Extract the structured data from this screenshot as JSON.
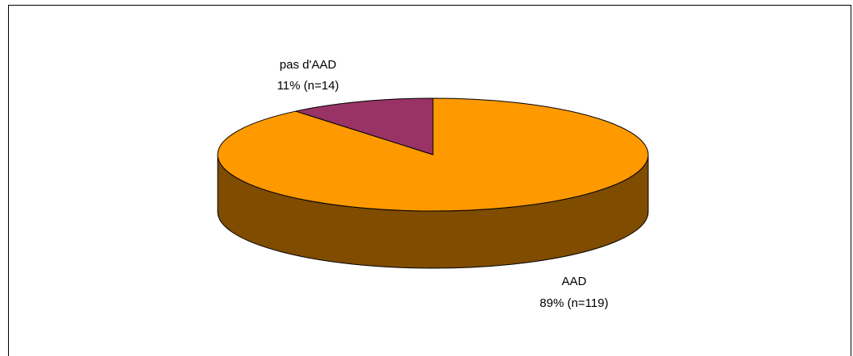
{
  "chart_data": {
    "type": "pie",
    "style": "3d",
    "title": "",
    "slices": [
      {
        "label": "AAD",
        "value_label": "89% (n=119)",
        "percent": 89,
        "n": 119,
        "color": "#FF9900",
        "side_color": "#7F4C00"
      },
      {
        "label": "pas d'AAD",
        "value_label": "11% (n=14)",
        "percent": 11,
        "n": 14,
        "color": "#993366",
        "side_color": "#4C1933"
      }
    ],
    "legend": "none"
  }
}
